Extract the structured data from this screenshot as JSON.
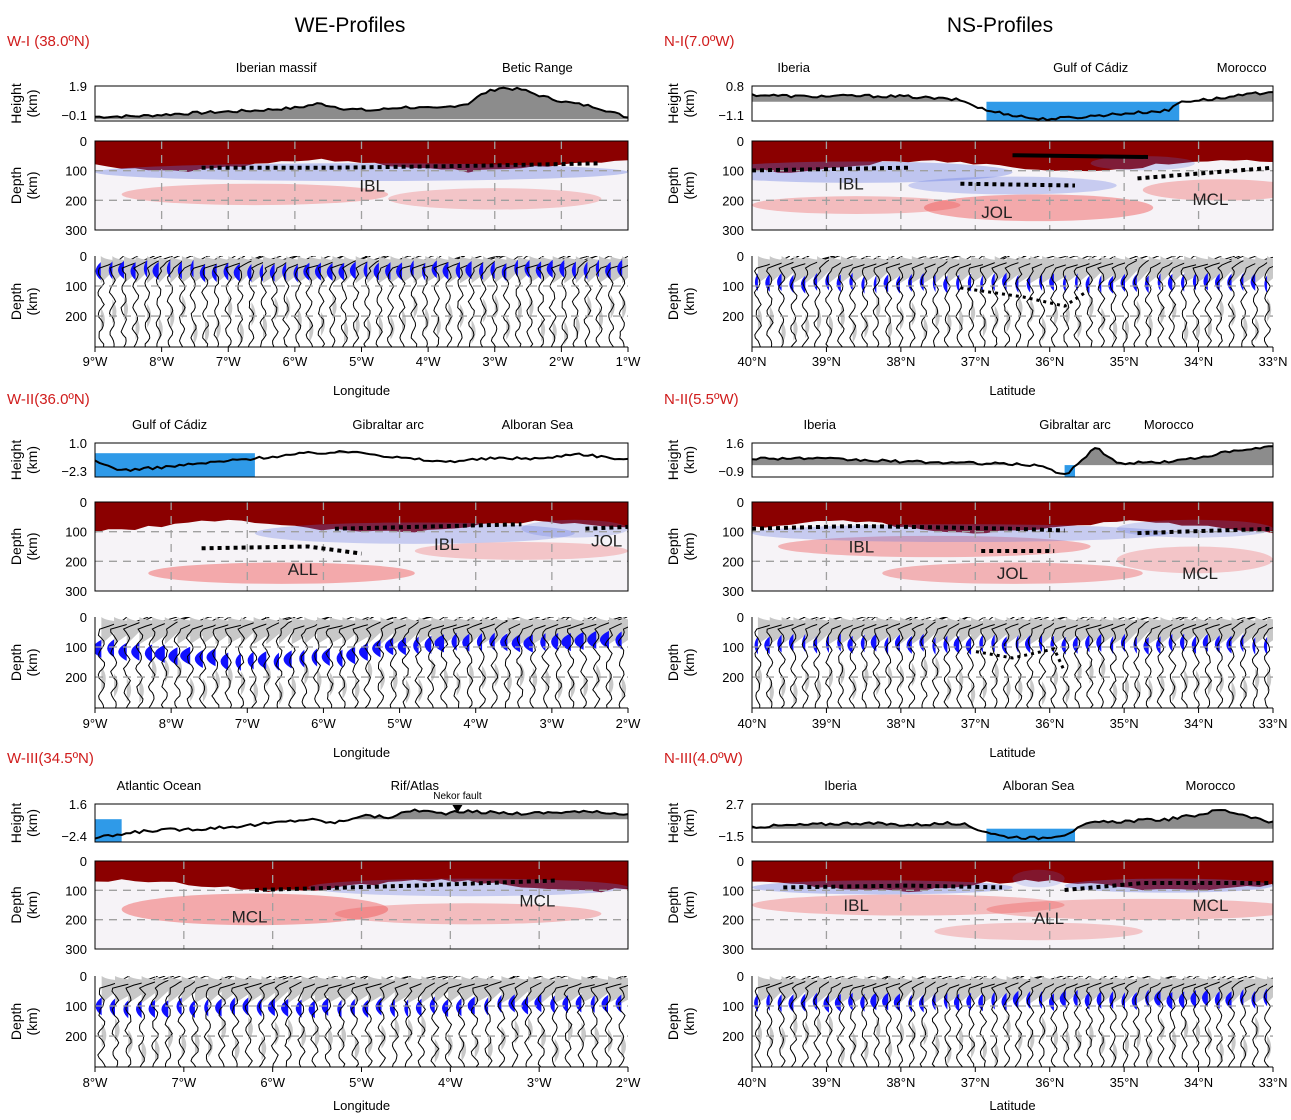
{
  "columns": [
    "WE-Profiles",
    "NS-Profiles"
  ],
  "panels": [
    {
      "id": "W-I",
      "title": "W-I (38.0ºN)",
      "col": 0,
      "row": 0,
      "height_label": "Height\n(km)",
      "height_ticks": [
        "1.9",
        "−0.1"
      ],
      "regions": [
        "Iberian massif",
        "Betic Range"
      ],
      "layers": [
        "IBL"
      ],
      "depth_ticks": [
        "0",
        "100",
        "200",
        "300"
      ],
      "trace_ticks": [
        "0",
        "100",
        "200"
      ],
      "depth_label": "Depth\n(km)",
      "x_ticks": [
        "9°W",
        "8°W",
        "7°W",
        "6°W",
        "5°W",
        "4°W",
        "3°W",
        "2°W",
        "1°W"
      ],
      "x_label": "Longitude"
    },
    {
      "id": "N-I",
      "title": "N-I(7.0ºW)",
      "col": 1,
      "row": 0,
      "height_label": "Height\n(km)",
      "height_ticks": [
        "0.8",
        "−1.1"
      ],
      "regions": [
        "Iberia",
        "Gulf of Cádiz",
        "Morocco"
      ],
      "layers": [
        "IBL",
        "JOL",
        "MCL"
      ],
      "depth_ticks": [
        "0",
        "100",
        "200",
        "300"
      ],
      "trace_ticks": [
        "0",
        "100",
        "200"
      ],
      "depth_label": "Depth\n(km)",
      "x_ticks": [
        "40°N",
        "39°N",
        "38°N",
        "37°N",
        "36°N",
        "35°N",
        "34°N",
        "33°N"
      ],
      "x_label": "Latitude"
    },
    {
      "id": "W-II",
      "title": "W-II(36.0ºN)",
      "col": 0,
      "row": 1,
      "height_label": "Height\n(km)",
      "height_ticks": [
        "1.0",
        "−2.3"
      ],
      "regions": [
        "Gulf of Cádiz",
        "Gibraltar arc",
        "Alboran Sea"
      ],
      "layers": [
        "IBL",
        "JOL",
        "ALL"
      ],
      "depth_ticks": [
        "0",
        "100",
        "200",
        "300"
      ],
      "trace_ticks": [
        "0",
        "100",
        "200"
      ],
      "depth_label": "Depth\n(km)",
      "x_ticks": [
        "9°W",
        "8°W",
        "7°W",
        "6°W",
        "5°W",
        "4°W",
        "3°W",
        "2°W"
      ],
      "x_label": "Longitude"
    },
    {
      "id": "N-II",
      "title": "N-II(5.5ºW)",
      "col": 1,
      "row": 1,
      "height_label": "Height\n(km)",
      "height_ticks": [
        "1.6",
        "−0.9"
      ],
      "regions": [
        "Iberia",
        "Gibraltar arc",
        "Morocco"
      ],
      "layers": [
        "IBL",
        "JOL",
        "MCL"
      ],
      "depth_ticks": [
        "0",
        "100",
        "200",
        "300"
      ],
      "trace_ticks": [
        "0",
        "100",
        "200"
      ],
      "depth_label": "Depth\n(km)",
      "x_ticks": [
        "40°N",
        "39°N",
        "38°N",
        "37°N",
        "36°N",
        "35°N",
        "34°N",
        "33°N"
      ],
      "x_label": "Latitude"
    },
    {
      "id": "W-III",
      "title": "W-III(34.5ºN)",
      "col": 0,
      "row": 2,
      "height_label": "Height\n(km)",
      "height_ticks": [
        "1.6",
        "−2.4"
      ],
      "regions": [
        "Atlantic Ocean",
        "Rif/Atlas"
      ],
      "extra_label": "Nekor fault",
      "layers": [
        "MCL",
        "MCL"
      ],
      "depth_ticks": [
        "0",
        "100",
        "200",
        "300"
      ],
      "trace_ticks": [
        "0",
        "100",
        "200"
      ],
      "depth_label": "Depth\n(km)",
      "x_ticks": [
        "8°W",
        "7°W",
        "6°W",
        "5°W",
        "4°W",
        "3°W",
        "2°W"
      ],
      "x_label": "Longitude"
    },
    {
      "id": "N-III",
      "title": "N-III(4.0ºW)",
      "col": 1,
      "row": 2,
      "height_label": "Height\n(km)",
      "height_ticks": [
        "2.7",
        "−1.5"
      ],
      "regions": [
        "Iberia",
        "Alboran Sea",
        "Morocco"
      ],
      "layers": [
        "IBL",
        "ALL",
        "MCL"
      ],
      "depth_ticks": [
        "0",
        "100",
        "200",
        "300"
      ],
      "trace_ticks": [
        "0",
        "100",
        "200"
      ],
      "depth_label": "Depth\n(km)",
      "x_ticks": [
        "40°N",
        "39°N",
        "38°N",
        "37°N",
        "36°N",
        "35°N",
        "34°N",
        "33°N"
      ],
      "x_label": "Latitude"
    }
  ],
  "colors": {
    "title_red": "#d01c1c",
    "topo_gray": "#8c8c8c",
    "water_blue": "#2f9ae8",
    "deep_red": "#8b0000",
    "blue_phase": "#1010ff",
    "gray_fill": "#c8c8c8"
  }
}
